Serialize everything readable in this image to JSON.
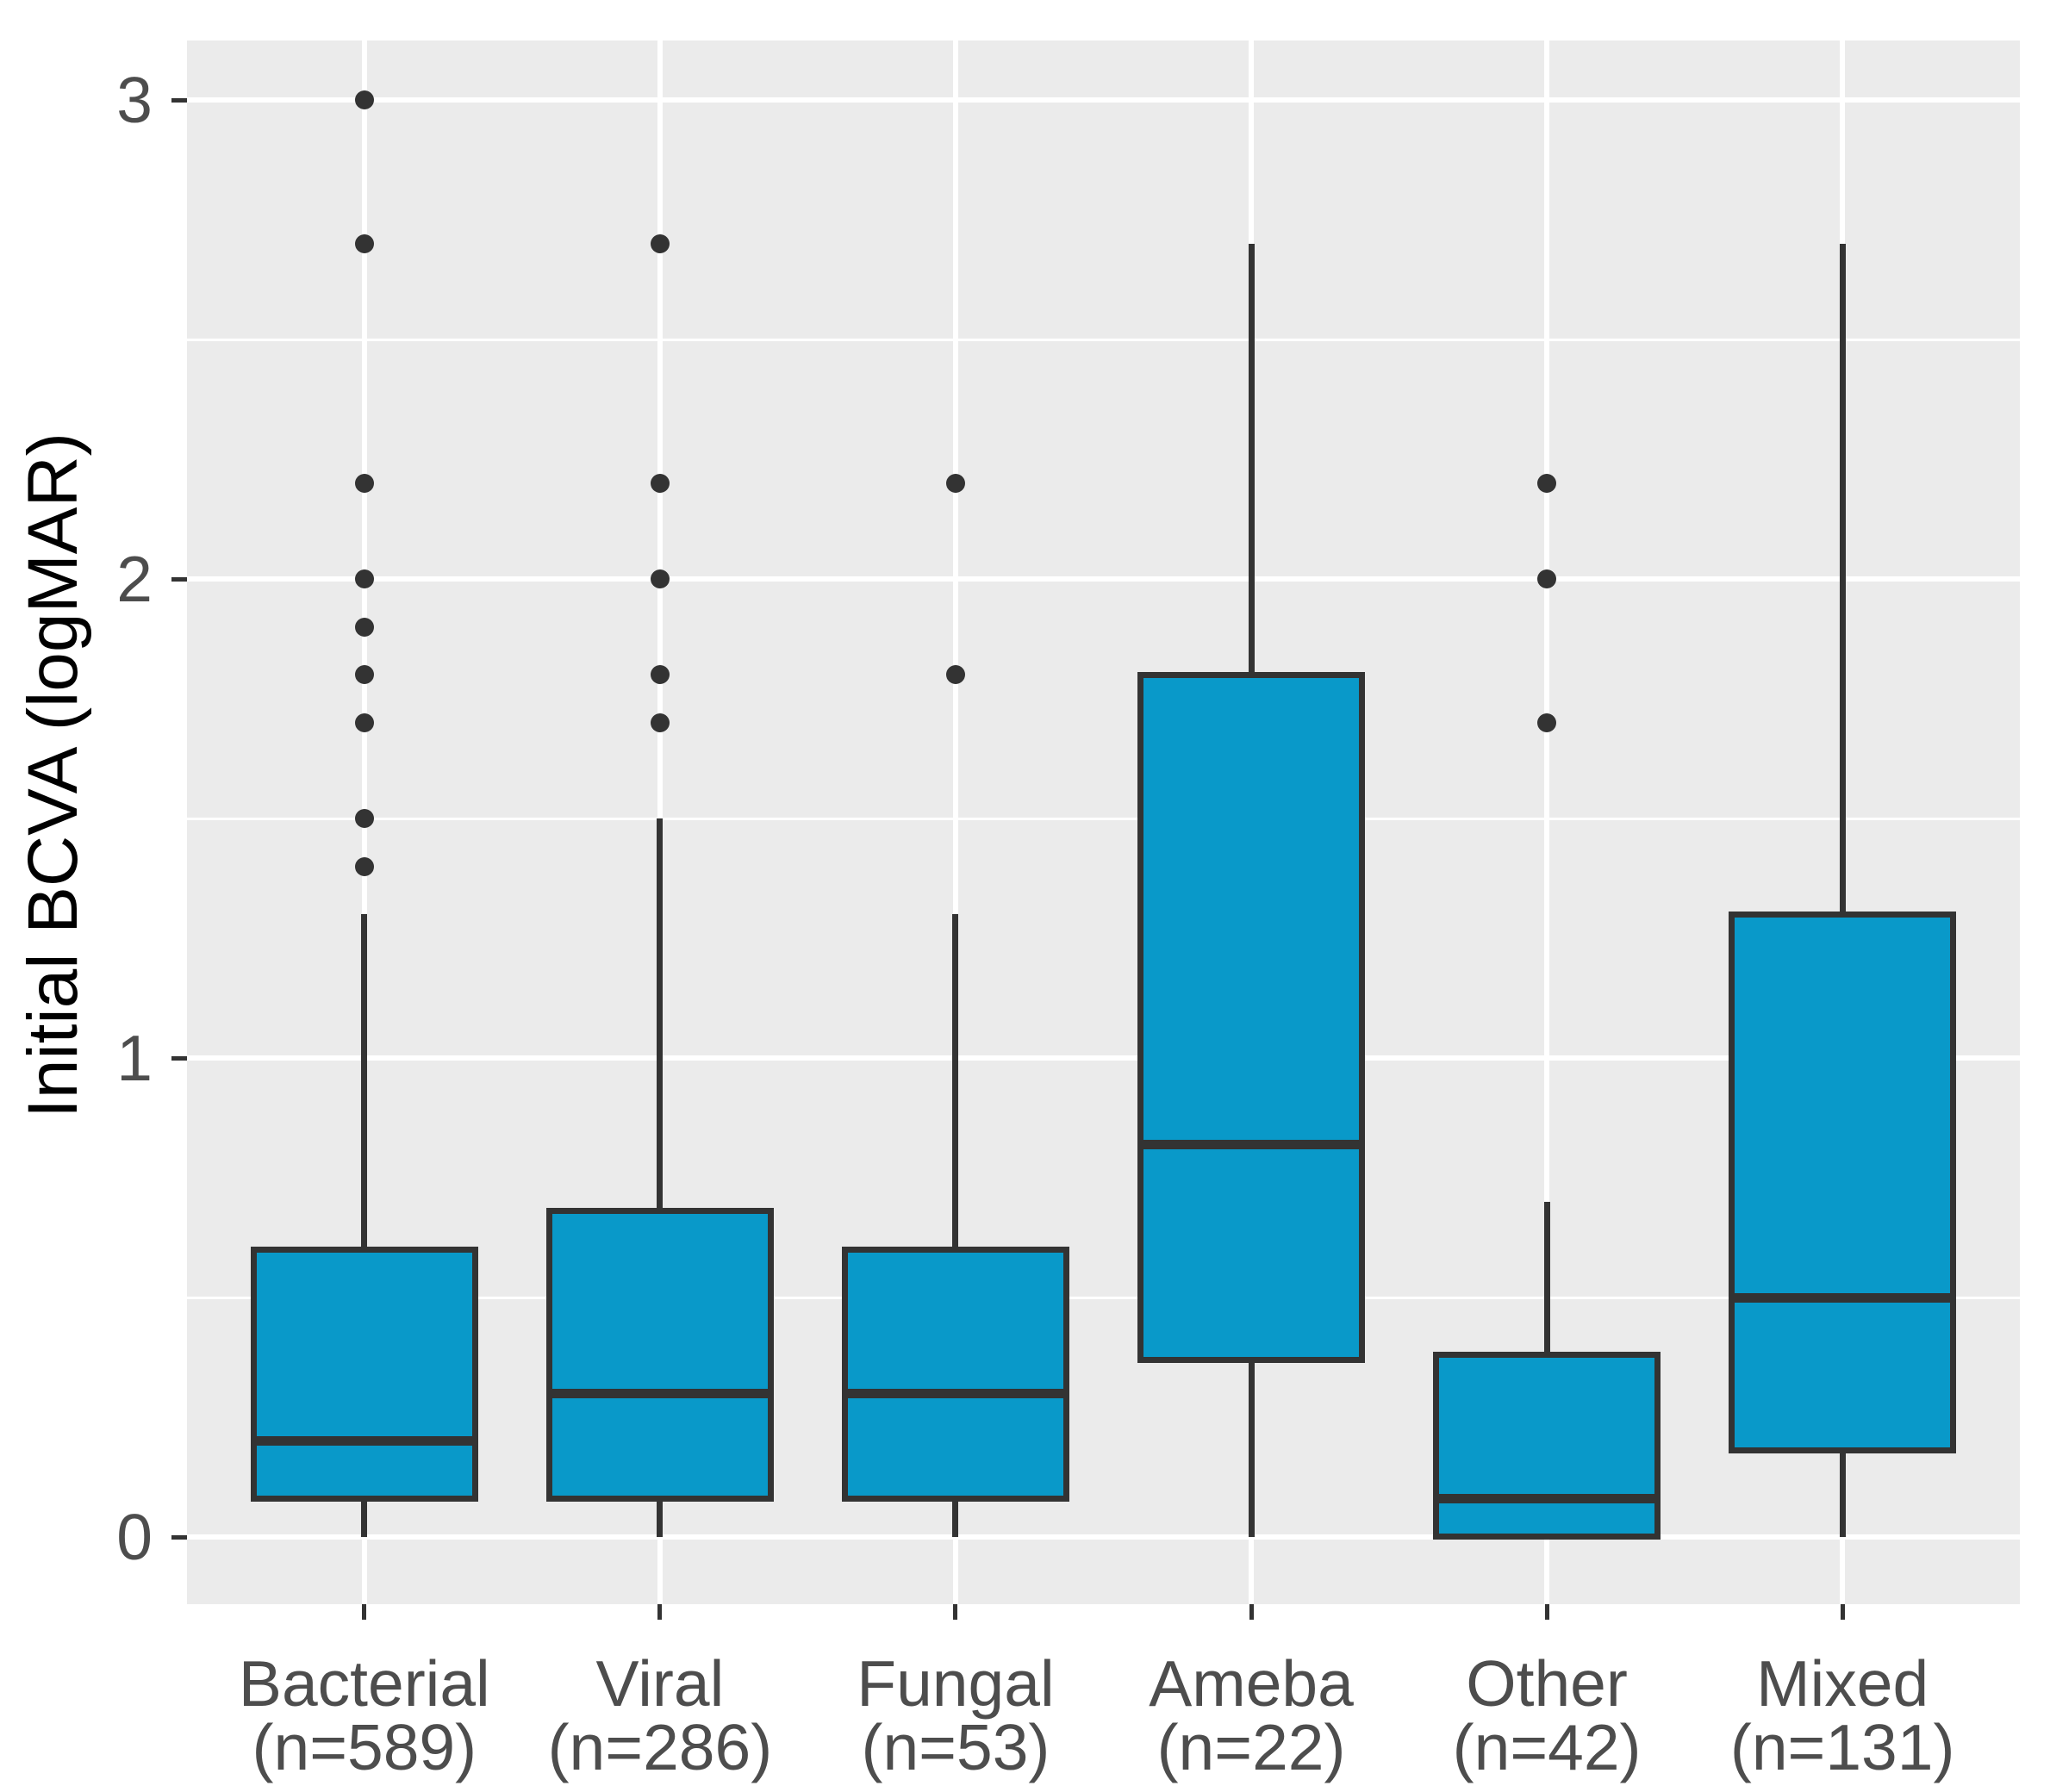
{
  "y_axis": {
    "label": "Initial BCVA (logMAR)",
    "ticks": [
      "3",
      "2",
      "1",
      "0"
    ],
    "tick_values": [
      3,
      2,
      1,
      0
    ],
    "minor_gridlines": [
      0.5,
      1.5,
      2.5
    ],
    "domain": [
      -0.14,
      3.12
    ]
  },
  "x_axis": {
    "categories": [
      "Bacterial",
      "Viral",
      "Fungal",
      "Ameba",
      "Other",
      "Mixed"
    ]
  },
  "chart_data": {
    "type": "boxplot",
    "title": "",
    "xlabel": "",
    "ylabel": "Initial BCVA (logMAR)",
    "ylim": [
      -0.14,
      3.12
    ],
    "grid": "major-and-minor, white on grey panel",
    "legend_position": "none",
    "categories": [
      "Bacterial (n=589)",
      "Viral (n=286)",
      "Fungal (n=53)",
      "Ameba (n=22)",
      "Other (n=42)",
      "Mixed (n=131)"
    ],
    "series": [
      {
        "label": "Bacterial",
        "n_label": "(n=589)",
        "n": 589,
        "whisker_low": 0,
        "q1": 0.08,
        "median": 0.2,
        "q3": 0.6,
        "whisker_high": 1.3,
        "outliers": [
          1.4,
          1.5,
          1.7,
          1.8,
          1.9,
          2.0,
          2.2,
          2.7,
          3.0
        ]
      },
      {
        "label": "Viral",
        "n_label": "(n=286)",
        "n": 286,
        "whisker_low": 0,
        "q1": 0.08,
        "median": 0.3,
        "q3": 0.68,
        "whisker_high": 1.5,
        "outliers": [
          1.7,
          1.8,
          2.0,
          2.2,
          2.7
        ]
      },
      {
        "label": "Fungal",
        "n_label": "(n=53)",
        "n": 53,
        "whisker_low": 0,
        "q1": 0.08,
        "median": 0.3,
        "q3": 0.6,
        "whisker_high": 1.3,
        "outliers": [
          1.8,
          2.2
        ]
      },
      {
        "label": "Ameba",
        "n_label": "(n=22)",
        "n": 22,
        "whisker_low": 0,
        "q1": 0.37,
        "median": 0.82,
        "q3": 1.8,
        "whisker_high": 2.7,
        "outliers": []
      },
      {
        "label": "Other",
        "n_label": "(n=42)",
        "n": 42,
        "whisker_low": 0,
        "q1": 0.0,
        "median": 0.08,
        "q3": 0.38,
        "whisker_high": 0.7,
        "outliers": [
          1.7,
          2.0,
          2.2
        ]
      },
      {
        "label": "Mixed",
        "n_label": "(n=131)",
        "n": 131,
        "whisker_low": 0,
        "q1": 0.18,
        "median": 0.5,
        "q3": 1.3,
        "whisker_high": 2.7,
        "outliers": []
      }
    ]
  },
  "colors": {
    "box_fill": "#0999C9",
    "box_border": "#333333",
    "median": "#333333",
    "whisker": "#333333",
    "outlier": "#333333",
    "panel_bg": "#EBEBEB",
    "gridline": "#FFFFFF",
    "tick_mark": "#333333",
    "tick_text": "#4D4D4D",
    "axis_title_text": "#000000"
  }
}
